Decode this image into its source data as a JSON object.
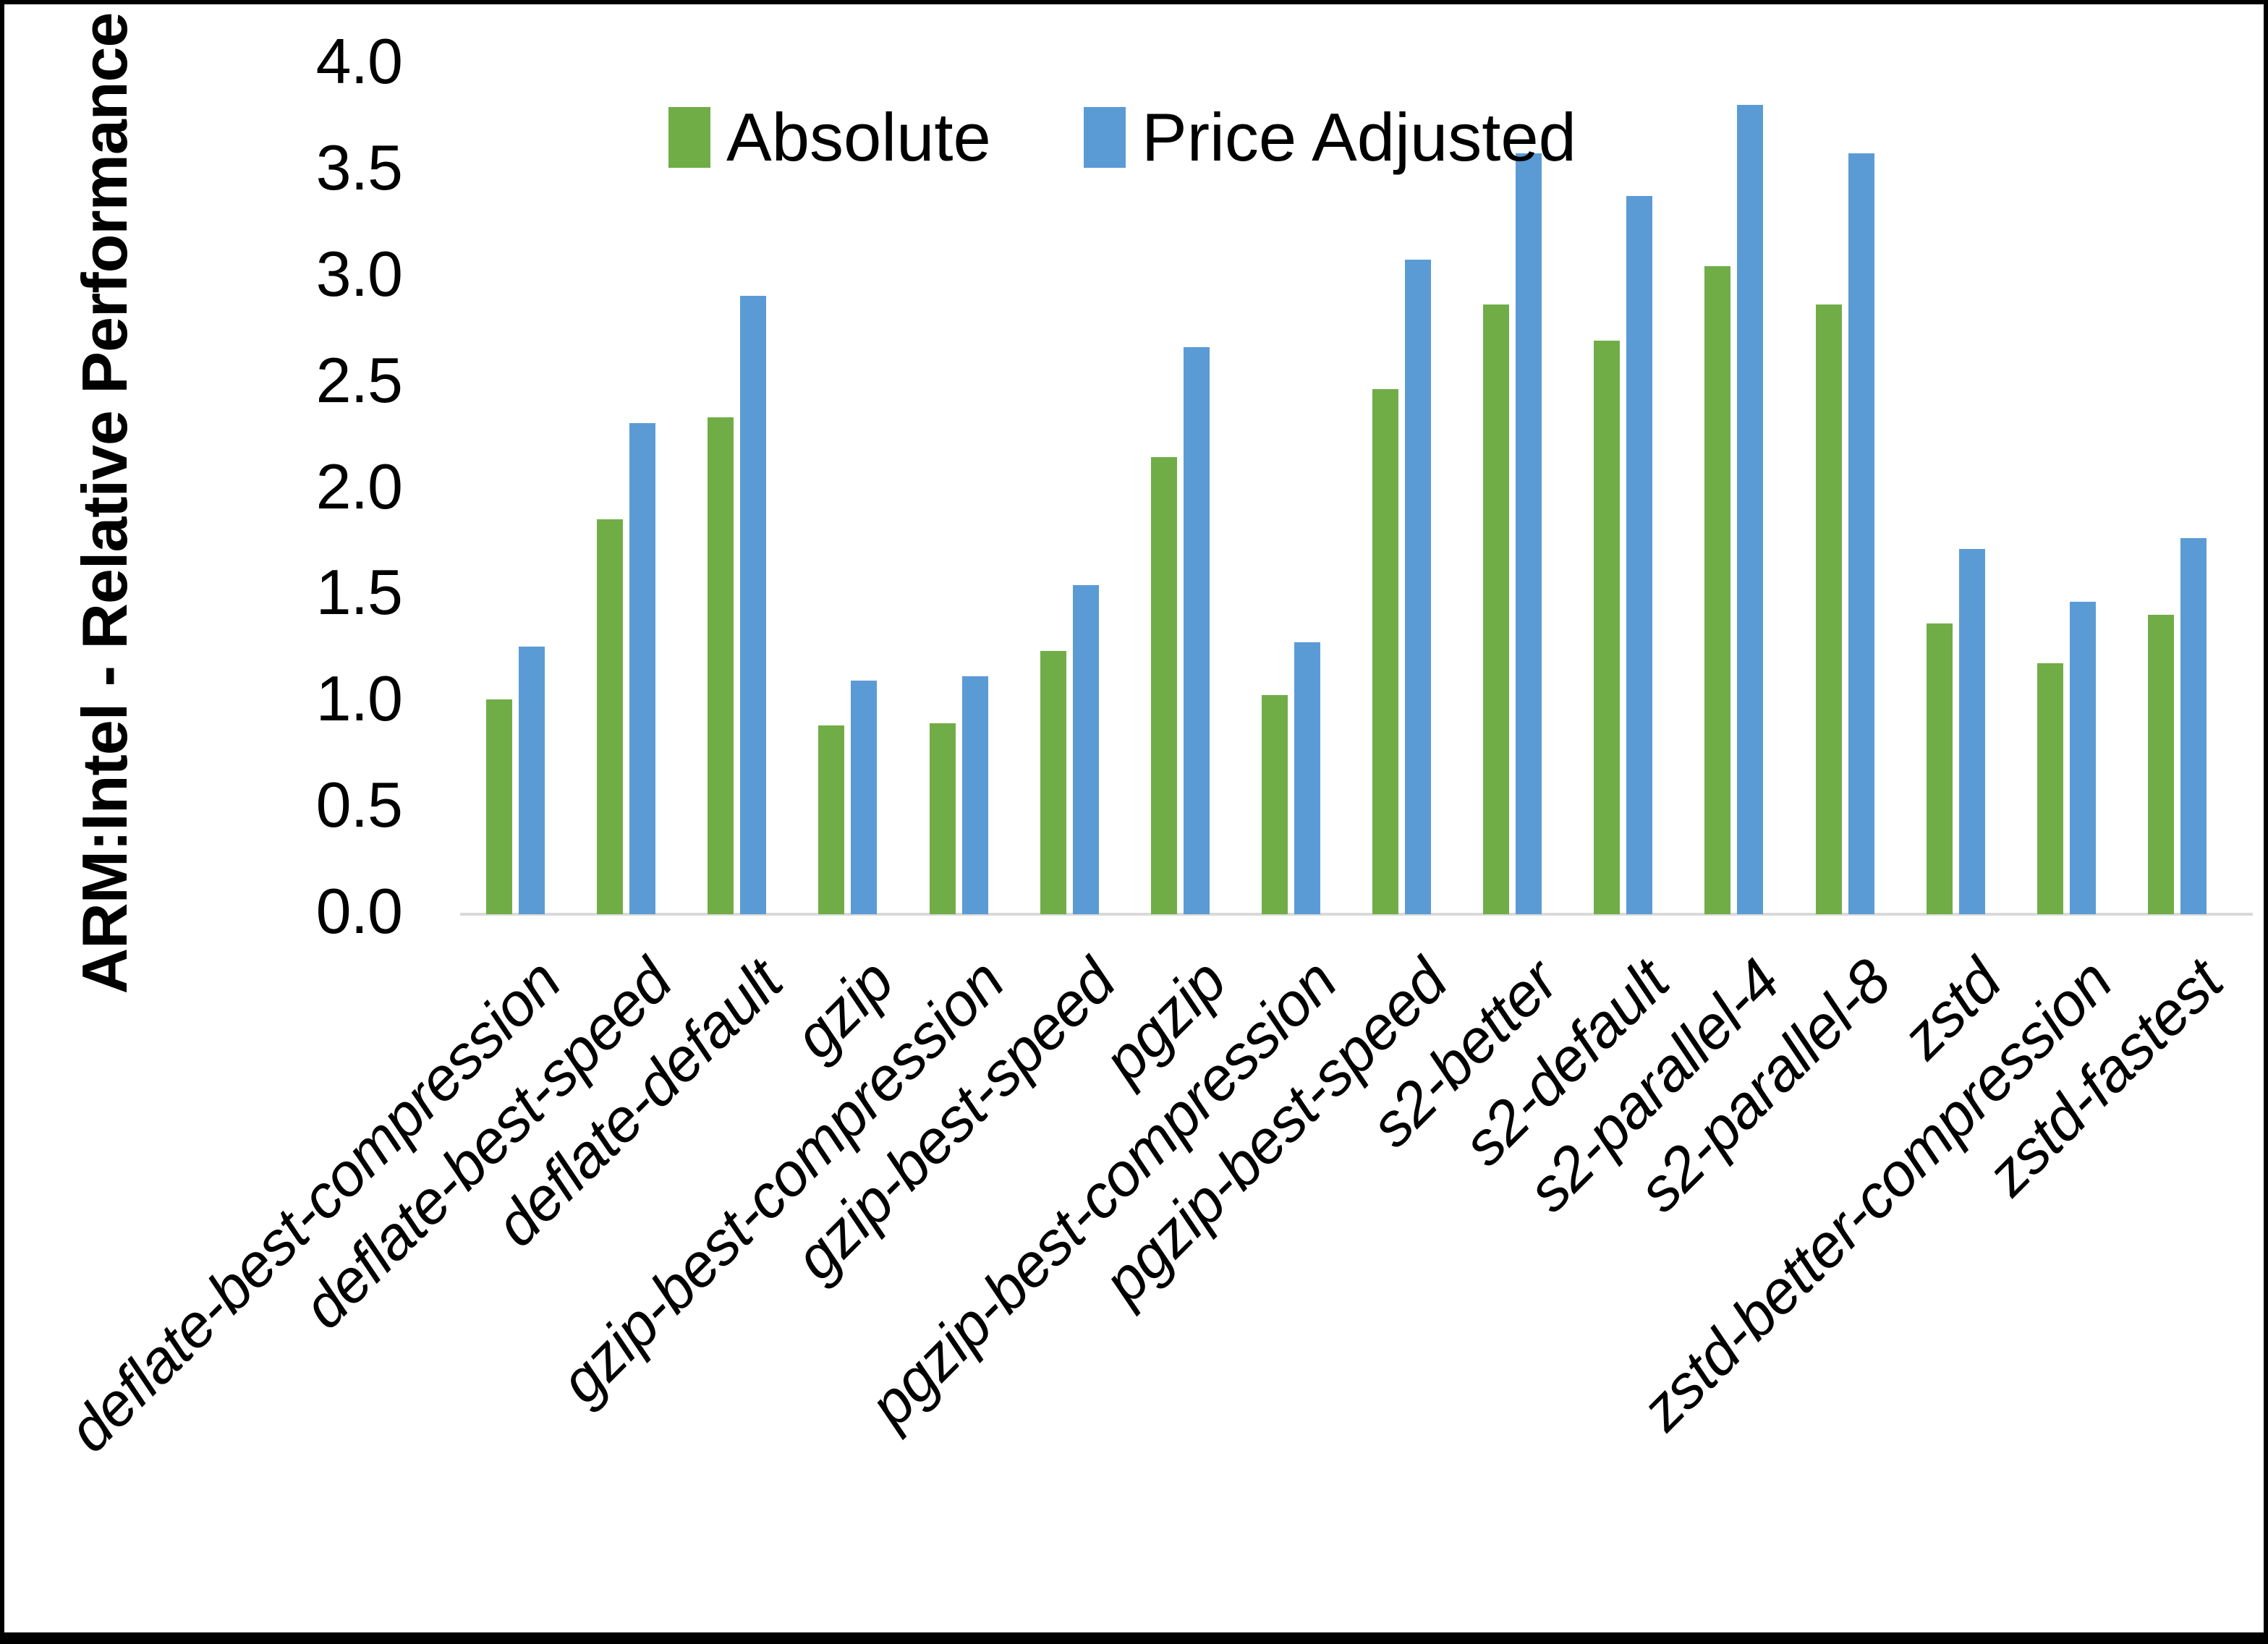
{
  "chart_data": {
    "type": "bar",
    "title": "",
    "xlabel": "",
    "ylabel": "ARM:Intel - Relative Performance",
    "ylim": [
      0.0,
      4.0
    ],
    "ytick_step": 0.5,
    "yticks": [
      "0.0",
      "0.5",
      "1.0",
      "1.5",
      "2.0",
      "2.5",
      "3.0",
      "3.5",
      "4.0"
    ],
    "grid": false,
    "legend_position": "top",
    "axis_line_color": "#d9d9d9",
    "categories": [
      "deflate-best-compression",
      "deflate-best-speed",
      "deflate-default",
      "gzip",
      "gzip-best-compression",
      "gzip-best-speed",
      "pgzip",
      "pgzip-best-compression",
      "pgzip-best-speed",
      "s2-better",
      "s2-default",
      "s2-parallel-4",
      "s2-parallel-8",
      "zstd",
      "zstd-better-compression",
      "zstd-fastest"
    ],
    "series": [
      {
        "name": "Absolute",
        "color": "#70ad47",
        "values": [
          1.01,
          1.86,
          2.34,
          0.89,
          0.9,
          1.24,
          2.15,
          1.03,
          2.47,
          2.87,
          2.7,
          3.05,
          2.87,
          1.37,
          1.18,
          1.41
        ]
      },
      {
        "name": "Price Adjusted",
        "color": "#5b9bd5",
        "values": [
          1.26,
          2.31,
          2.91,
          1.1,
          1.12,
          1.55,
          2.67,
          1.28,
          3.08,
          3.58,
          3.38,
          3.81,
          3.58,
          1.72,
          1.47,
          1.77
        ]
      }
    ]
  }
}
